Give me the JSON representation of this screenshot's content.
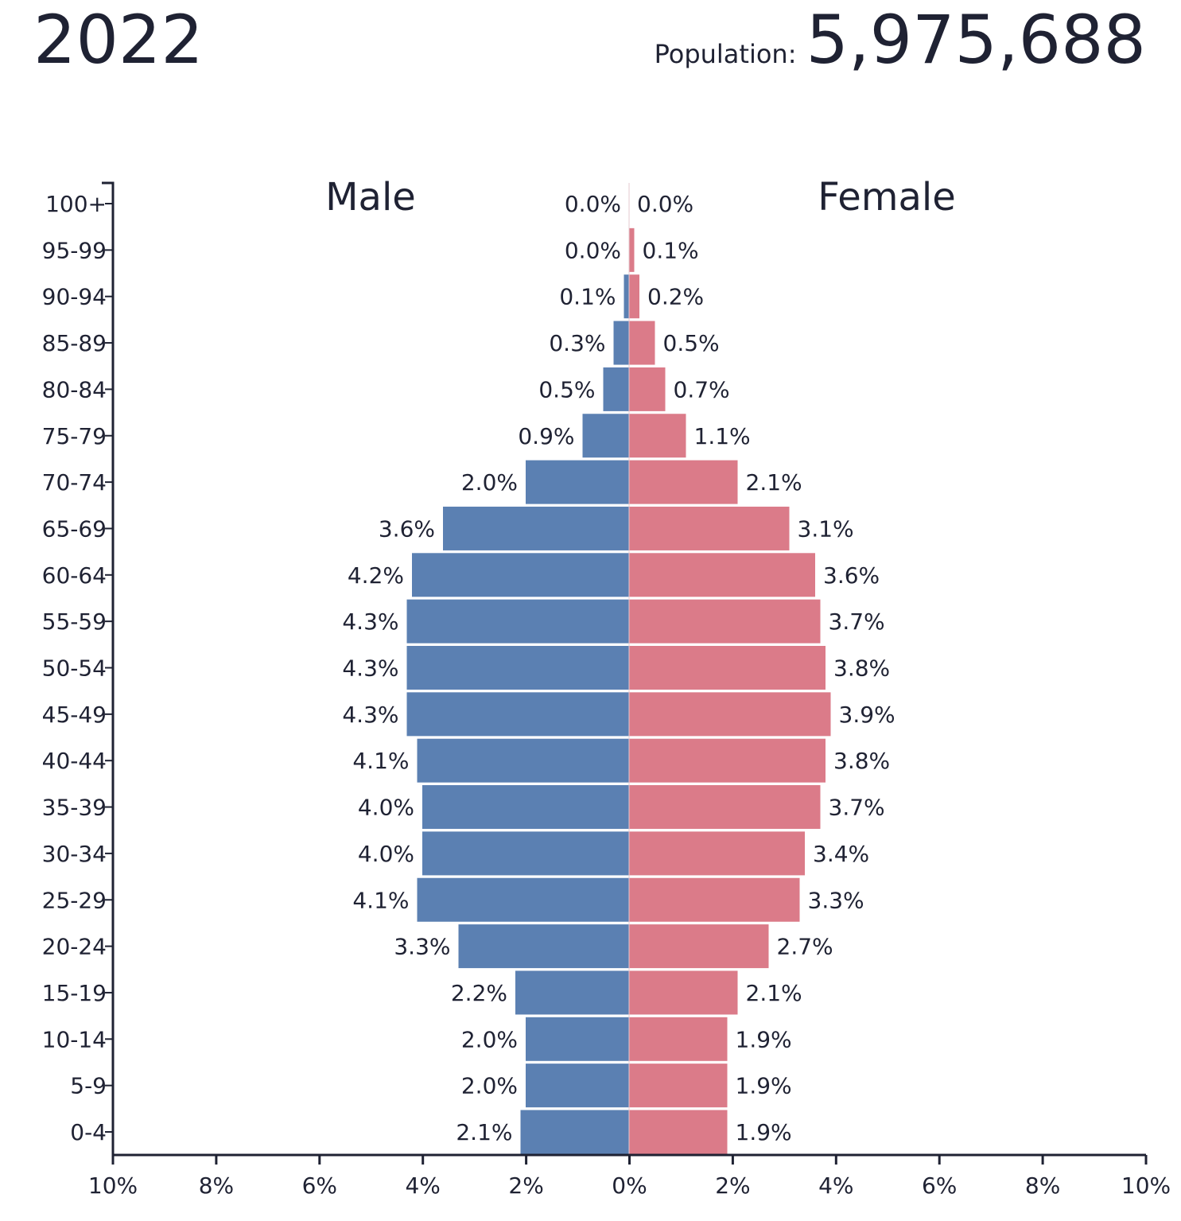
{
  "header": {
    "year": "2022",
    "population_label": "Population:",
    "population_value": "5,975,688"
  },
  "chart_data": {
    "type": "bar",
    "orientation": "horizontal",
    "subtype": "population-pyramid",
    "categories": [
      "100+",
      "95-99",
      "90-94",
      "85-89",
      "80-84",
      "75-79",
      "70-74",
      "65-69",
      "60-64",
      "55-59",
      "50-54",
      "45-49",
      "40-44",
      "35-39",
      "30-34",
      "25-29",
      "20-24",
      "15-19",
      "10-14",
      "5-9",
      "0-4"
    ],
    "series": [
      {
        "name": "Male",
        "color": "#5b80b2",
        "values": [
          0.0,
          0.0,
          0.1,
          0.3,
          0.5,
          0.9,
          2.0,
          3.6,
          4.2,
          4.3,
          4.3,
          4.3,
          4.1,
          4.0,
          4.0,
          4.1,
          3.3,
          2.2,
          2.0,
          2.0,
          2.1
        ],
        "labels": [
          "0.0%",
          "0.0%",
          "0.1%",
          "0.3%",
          "0.5%",
          "0.9%",
          "2.0%",
          "3.6%",
          "4.2%",
          "4.3%",
          "4.3%",
          "4.3%",
          "4.1%",
          "4.0%",
          "4.0%",
          "4.1%",
          "3.3%",
          "2.2%",
          "2.0%",
          "2.0%",
          "2.1%"
        ]
      },
      {
        "name": "Female",
        "color": "#db7b89",
        "values": [
          0.0,
          0.1,
          0.2,
          0.5,
          0.7,
          1.1,
          2.1,
          3.1,
          3.6,
          3.7,
          3.8,
          3.9,
          3.8,
          3.7,
          3.4,
          3.3,
          2.7,
          2.1,
          1.9,
          1.9,
          1.9
        ],
        "labels": [
          "0.0%",
          "0.1%",
          "0.2%",
          "0.5%",
          "0.7%",
          "1.1%",
          "2.1%",
          "3.1%",
          "3.6%",
          "3.7%",
          "3.8%",
          "3.9%",
          "3.8%",
          "3.7%",
          "3.4%",
          "3.3%",
          "2.7%",
          "2.1%",
          "1.9%",
          "1.9%",
          "1.9%"
        ]
      }
    ],
    "x_ticks": [
      "10%",
      "8%",
      "6%",
      "4%",
      "2%",
      "0%",
      "2%",
      "4%",
      "6%",
      "8%",
      "10%"
    ],
    "xlim": [
      -10,
      10
    ],
    "xlabel": "",
    "ylabel": "",
    "grid": false,
    "legend": "none"
  }
}
